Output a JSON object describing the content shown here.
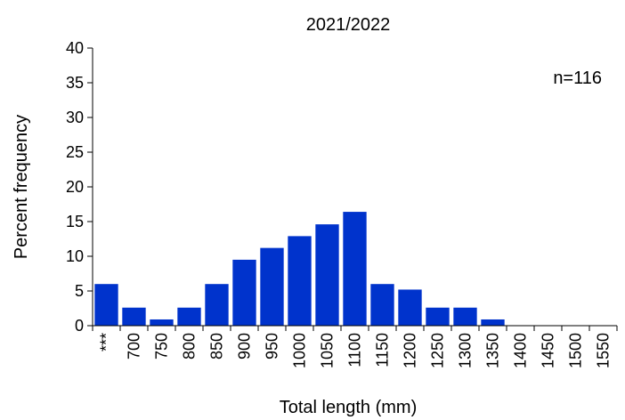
{
  "chart_data": {
    "type": "bar",
    "title": "2021/2022",
    "xlabel": "Total length (mm)",
    "ylabel": "Percent frequency",
    "annotation": "n=116",
    "categories": [
      "***",
      "700",
      "750",
      "800",
      "850",
      "900",
      "950",
      "1000",
      "1050",
      "1100",
      "1150",
      "1200",
      "1250",
      "1300",
      "1350",
      "1400",
      "1450",
      "1500",
      "1550"
    ],
    "values": [
      6.0,
      2.6,
      0.9,
      2.6,
      6.0,
      9.5,
      11.2,
      12.9,
      14.6,
      16.4,
      6.0,
      5.2,
      2.6,
      2.6,
      0.9,
      0,
      0,
      0,
      0
    ],
    "ylim": [
      0,
      40
    ],
    "yticks": [
      0,
      5,
      10,
      15,
      20,
      25,
      30,
      35,
      40
    ],
    "bar_color": "#0033CC",
    "grid": false,
    "legend": "none"
  }
}
